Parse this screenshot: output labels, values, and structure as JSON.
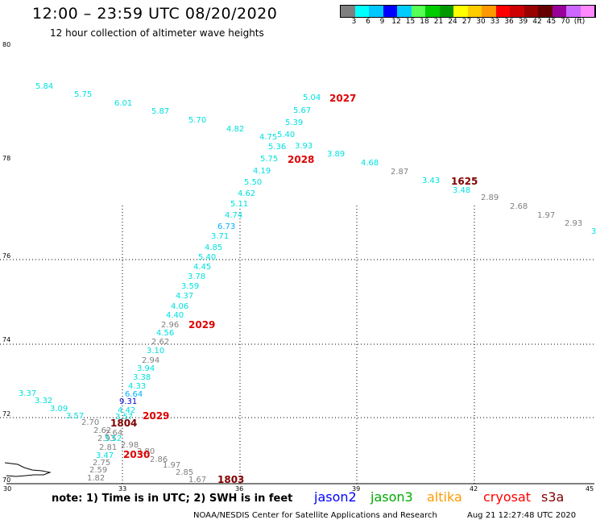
{
  "header": {
    "title": "12:00 – 23:59 UTC 08/20/2020",
    "subtitle": "12 hour collection of altimeter wave heights"
  },
  "colorbar": {
    "colors": [
      "#7f7f7f",
      "#00ffff",
      "#00c8ff",
      "#0000ff",
      "#00ccff",
      "#55ff55",
      "#00cc00",
      "#009900",
      "#ffff00",
      "#ffcc00",
      "#ff9900",
      "#ff0000",
      "#cc0000",
      "#990000",
      "#660000",
      "#990099",
      "#cc66ff",
      "#ff88ff",
      "#000000"
    ],
    "labels": [
      "3",
      "6",
      "9",
      "12",
      "15",
      "18",
      "21",
      "24",
      "27",
      "30",
      "33",
      "36",
      "39",
      "42",
      "45",
      "70",
      "(ft)"
    ]
  },
  "axes": {
    "lat_labels": [
      "80",
      "78",
      "76",
      "74",
      "72",
      "70"
    ],
    "lon_labels": [
      "30",
      "33",
      "36",
      "39",
      "42",
      "45"
    ]
  },
  "observations": [
    {
      "v": "5.84",
      "c": "#00e0e0"
    },
    {
      "v": "5.75",
      "c": "#00e0e0"
    },
    {
      "v": "6.01",
      "c": "#00e0e0"
    },
    {
      "v": "5.87",
      "c": "#00e0e0"
    },
    {
      "v": "5.70",
      "c": "#00e0e0"
    },
    {
      "v": "4.82",
      "c": "#00e0e0"
    },
    {
      "v": "4.75",
      "c": "#00e0e0"
    },
    {
      "v": "5.40",
      "c": "#00e0e0"
    },
    {
      "v": "5.36",
      "c": "#00e0e0"
    },
    {
      "v": "3.93",
      "c": "#00e0e0"
    },
    {
      "v": "5.04",
      "c": "#00e0e0"
    },
    {
      "v": "5.67",
      "c": "#00e0e0"
    },
    {
      "v": "5.39",
      "c": "#00e0e0"
    },
    {
      "v": "5.75",
      "c": "#00e0e0"
    },
    {
      "v": "3.89",
      "c": "#00e0e0"
    },
    {
      "v": "4.68",
      "c": "#00e0e0"
    },
    {
      "v": "2.87",
      "c": "#7f7f7f"
    },
    {
      "v": "3.43",
      "c": "#00e0e0"
    },
    {
      "v": "3.48",
      "c": "#00e0e0"
    },
    {
      "v": "2.89",
      "c": "#7f7f7f"
    },
    {
      "v": "2.68",
      "c": "#7f7f7f"
    },
    {
      "v": "1.97",
      "c": "#7f7f7f"
    },
    {
      "v": "2.93",
      "c": "#7f7f7f"
    },
    {
      "v": "3",
      "c": "#00e0e0"
    },
    {
      "v": "4.19",
      "c": "#00e0e0"
    },
    {
      "v": "5.50",
      "c": "#00e0e0"
    },
    {
      "v": "4.62",
      "c": "#00e0e0"
    },
    {
      "v": "5.11",
      "c": "#00e0e0"
    },
    {
      "v": "4.74",
      "c": "#00e0e0"
    },
    {
      "v": "6.73",
      "c": "#00b0ff"
    },
    {
      "v": "3.71",
      "c": "#00e0e0"
    },
    {
      "v": "4.85",
      "c": "#00e0e0"
    },
    {
      "v": "5.40",
      "c": "#00e0e0"
    },
    {
      "v": "4.45",
      "c": "#00e0e0"
    },
    {
      "v": "3.78",
      "c": "#00e0e0"
    },
    {
      "v": "3.59",
      "c": "#00e0e0"
    },
    {
      "v": "4.37",
      "c": "#00e0e0"
    },
    {
      "v": "4.06",
      "c": "#00e0e0"
    },
    {
      "v": "4.40",
      "c": "#00e0e0"
    },
    {
      "v": "2.96",
      "c": "#7f7f7f"
    },
    {
      "v": "4.56",
      "c": "#00e0e0"
    },
    {
      "v": "2.62",
      "c": "#7f7f7f"
    },
    {
      "v": "3.10",
      "c": "#00e0e0"
    },
    {
      "v": "2.94",
      "c": "#7f7f7f"
    },
    {
      "v": "3.94",
      "c": "#00e0e0"
    },
    {
      "v": "3.38",
      "c": "#00e0e0"
    },
    {
      "v": "4.33",
      "c": "#00e0e0"
    },
    {
      "v": "6.64",
      "c": "#00b0ff"
    },
    {
      "v": "9.31",
      "c": "#0000cc"
    },
    {
      "v": "4.42",
      "c": "#00e0e0"
    },
    {
      "v": "3.57",
      "c": "#00e0e0"
    },
    {
      "v": "3.37",
      "c": "#00e0e0"
    },
    {
      "v": "3.32",
      "c": "#00e0e0"
    },
    {
      "v": "3.09",
      "c": "#00e0e0"
    },
    {
      "v": "3.57",
      "c": "#00e0e0"
    },
    {
      "v": "2.70",
      "c": "#7f7f7f"
    },
    {
      "v": "2.62",
      "c": "#7f7f7f"
    },
    {
      "v": "2.64",
      "c": "#7f7f7f"
    },
    {
      "v": "2.93",
      "c": "#7f7f7f"
    },
    {
      "v": "3.52",
      "c": "#00e0e0"
    },
    {
      "v": "2.81",
      "c": "#7f7f7f"
    },
    {
      "v": "2.98",
      "c": "#7f7f7f"
    },
    {
      "v": "3.47",
      "c": "#00e0e0"
    },
    {
      "v": "2.80",
      "c": "#7f7f7f"
    },
    {
      "v": "2.86",
      "c": "#7f7f7f"
    },
    {
      "v": "2.75",
      "c": "#7f7f7f"
    },
    {
      "v": "1.97",
      "c": "#7f7f7f"
    },
    {
      "v": "2.59",
      "c": "#7f7f7f"
    },
    {
      "v": "2.85",
      "c": "#7f7f7f"
    },
    {
      "v": "1.82",
      "c": "#7f7f7f"
    },
    {
      "v": "1.67",
      "c": "#7f7f7f"
    }
  ],
  "time_labels": [
    {
      "v": "2027",
      "c": "#e00000"
    },
    {
      "v": "2028",
      "c": "#e00000"
    },
    {
      "v": "1625",
      "c": "#800000"
    },
    {
      "v": "2029",
      "c": "#e00000"
    },
    {
      "v": "1804",
      "c": "#800000"
    },
    {
      "v": "2029",
      "c": "#e00000"
    },
    {
      "v": "2030",
      "c": "#e00000"
    },
    {
      "v": "1803",
      "c": "#800000"
    }
  ],
  "footer": {
    "note": "note: 1) Time is in UTC; 2) SWH is in feet",
    "missions": [
      {
        "name": "jason2",
        "color": "#0000ff"
      },
      {
        "name": "jason3",
        "color": "#00aa00"
      },
      {
        "name": "altika",
        "color": "#ff9900"
      },
      {
        "name": "cryosat",
        "color": "#ff0000"
      },
      {
        "name": "s3a",
        "color": "#800000"
      }
    ],
    "credit": "NOAA/NESDIS Center for Satellite Applications and Research",
    "timestamp": "Aug 21 12:27:48 UTC 2020"
  }
}
